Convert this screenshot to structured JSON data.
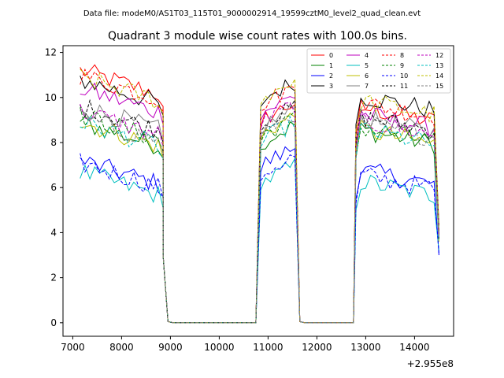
{
  "chart_data": {
    "type": "line",
    "suptitle": "Data file: modeM0/AS1T03_115T01_9000002914_19599cztM0_level2_quad_clean.evt",
    "title": "Quadrant 3 module wise count rates with 100.0s bins.",
    "xlabel": "",
    "ylabel": "",
    "x_offset_label": "+2.955e8",
    "xlim": [
      6800,
      14800
    ],
    "ylim": [
      -0.6,
      12.3
    ],
    "x_ticks": [
      7000,
      8000,
      9000,
      10000,
      11000,
      12000,
      13000,
      14000
    ],
    "x_tick_labels": [
      "7000",
      "8000",
      "9000",
      "10000",
      "11000",
      "12000",
      "13000",
      "14000"
    ],
    "y_ticks": [
      0,
      2,
      4,
      6,
      8,
      10,
      12
    ],
    "y_tick_labels": [
      "0",
      "2",
      "4",
      "6",
      "8",
      "10",
      "12"
    ],
    "legend_position": "upper-right",
    "segments": [
      {
        "start": 7150,
        "end": 8850
      },
      {
        "start": 10850,
        "end": 11650
      },
      {
        "start": 12800,
        "end": 14450
      }
    ],
    "gap_bin_x": [
      8850,
      8950
    ],
    "series": [
      {
        "name": "0",
        "color": "#ff0000",
        "dash": "solid",
        "levels": [
          10.6,
          9.0,
          9.3
        ],
        "end_drop": 3.9
      },
      {
        "name": "1",
        "color": "#008000",
        "dash": "solid",
        "levels": [
          8.3,
          8.0,
          8.3
        ],
        "end_drop": 3.7
      },
      {
        "name": "2",
        "color": "#0000ff",
        "dash": "solid",
        "levels": [
          6.6,
          7.0,
          6.5
        ],
        "end_drop": 3.0
      },
      {
        "name": "3",
        "color": "#000000",
        "dash": "solid",
        "levels": [
          10.2,
          9.9,
          9.8
        ],
        "end_drop": 4.3
      },
      {
        "name": "4",
        "color": "#bf00bf",
        "dash": "solid",
        "levels": [
          9.8,
          9.3,
          9.0
        ],
        "end_drop": 4.0
      },
      {
        "name": "5",
        "color": "#00bfbf",
        "dash": "solid",
        "levels": [
          6.1,
          6.2,
          6.0
        ],
        "end_drop": 3.2
      },
      {
        "name": "6",
        "color": "#bfbf00",
        "dash": "solid",
        "levels": [
          8.3,
          8.4,
          8.3
        ],
        "end_drop": 3.6
      },
      {
        "name": "7",
        "color": "#808080",
        "dash": "solid",
        "levels": [
          9.0,
          8.7,
          8.8
        ],
        "end_drop": 3.8
      },
      {
        "name": "8",
        "color": "#ff0000",
        "dash": "dashed",
        "levels": [
          10.4,
          9.7,
          9.5
        ],
        "end_drop": 4.1
      },
      {
        "name": "9",
        "color": "#008000",
        "dash": "dashed",
        "levels": [
          8.6,
          8.3,
          8.4
        ],
        "end_drop": 3.7
      },
      {
        "name": "10",
        "color": "#0000ff",
        "dash": "dashed",
        "levels": [
          6.5,
          6.6,
          6.3
        ],
        "end_drop": 3.1
      },
      {
        "name": "11",
        "color": "#000000",
        "dash": "dashed",
        "levels": [
          9.0,
          8.8,
          8.9
        ],
        "end_drop": 3.9
      },
      {
        "name": "12",
        "color": "#bf00bf",
        "dash": "dashed",
        "levels": [
          8.8,
          8.9,
          8.7
        ],
        "end_drop": 3.8
      },
      {
        "name": "13",
        "color": "#00bfbf",
        "dash": "dashed",
        "levels": [
          8.3,
          8.1,
          8.3
        ],
        "end_drop": 3.7
      },
      {
        "name": "14",
        "color": "#bfbf00",
        "dash": "dashed",
        "levels": [
          10.3,
          10.0,
          9.6
        ],
        "end_drop": 4.2
      },
      {
        "name": "15",
        "color": "#808080",
        "dash": "dashed",
        "levels": [
          8.5,
          8.5,
          8.6
        ],
        "end_drop": 3.8
      }
    ]
  }
}
